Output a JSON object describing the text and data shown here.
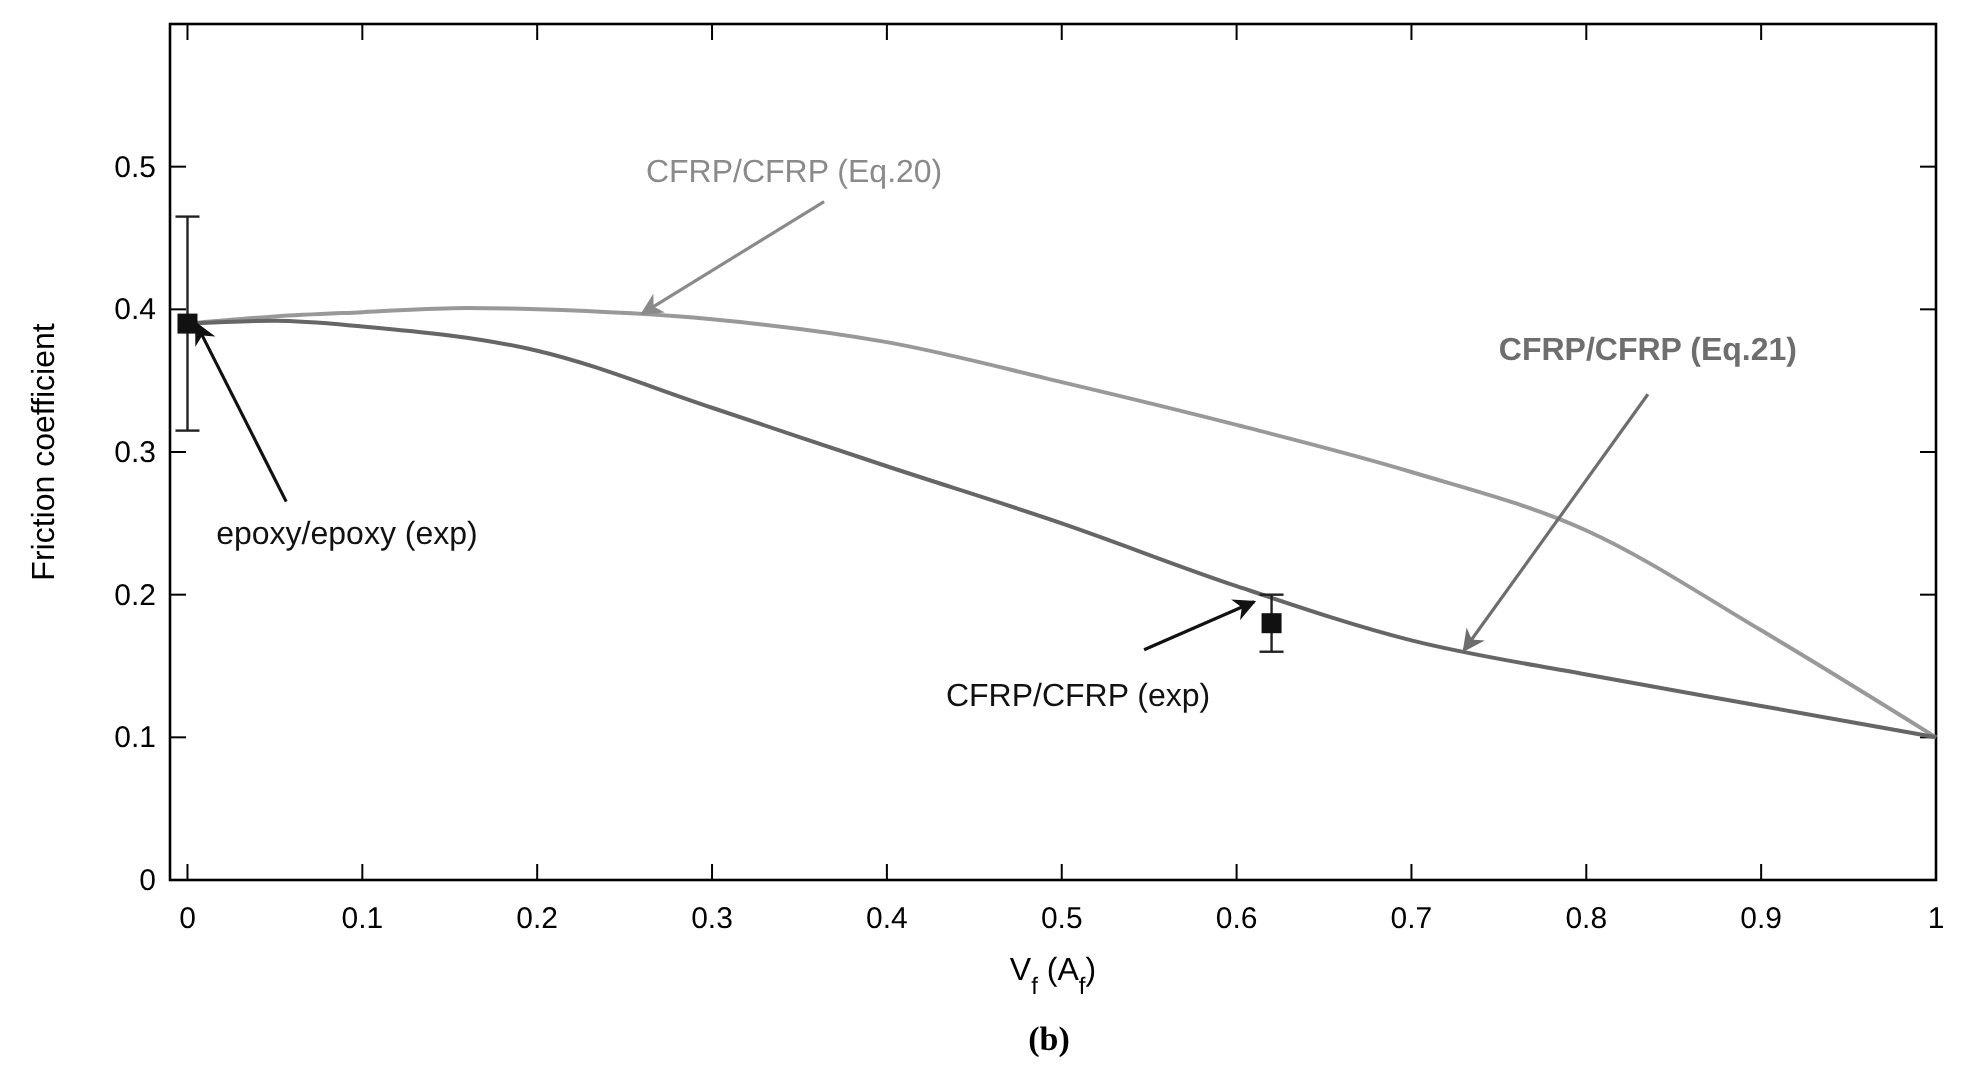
{
  "chart_data": {
    "type": "line",
    "xlabel": "V$_{f}$ (A$_{f}$)",
    "ylabel": "Friction coefficient",
    "xlim": [
      -0.01,
      1
    ],
    "ylim": [
      0,
      0.6
    ],
    "xticks": [
      0,
      0.1,
      0.2,
      0.3,
      0.4,
      0.5,
      0.6,
      0.7,
      0.8,
      0.9,
      1
    ],
    "yticks": [
      0,
      0.1,
      0.2,
      0.3,
      0.4,
      0.5
    ],
    "grid": false,
    "series": [
      {
        "color": "#999999",
        "x": [
          0,
          0.05,
          0.1,
          0.16,
          0.2,
          0.3,
          0.4,
          0.5,
          0.6,
          0.7,
          0.8,
          0.9,
          1
        ],
        "values": [
          0.39,
          0.395,
          0.398,
          0.401,
          0.4,
          0.393,
          0.377,
          0.349,
          0.319,
          0.286,
          0.245,
          0.175,
          0.1
        ],
        "line_style": "solid"
      },
      {
        "color": "#666666",
        "x": [
          0,
          0.05,
          0.1,
          0.2,
          0.3,
          0.4,
          0.5,
          0.6,
          0.7,
          0.8,
          0.9,
          1
        ],
        "values": [
          0.39,
          0.392,
          0.388,
          0.371,
          0.331,
          0.29,
          0.25,
          0.206,
          0.168,
          0.144,
          0.122,
          0.1
        ],
        "line_style": "solid"
      },
      {
        "type": "scatter",
        "color": "#111111",
        "x": [
          0,
          0.62
        ],
        "values": [
          0.39,
          0.18
        ],
        "errors": [
          [
            0.315,
            0.465
          ],
          [
            0.16,
            0.2
          ]
        ],
        "marker": "square"
      }
    ],
    "annotations": [
      {
        "text": "CFRP/CFRP (Eq.20)",
        "x": 0.26,
        "y": 0.397
      },
      {
        "text": "CFRP/CFRP (Eq.21)",
        "x": 0.73,
        "y": 0.161
      },
      {
        "text": "epoxy/epoxy (exp)",
        "x": 0.005,
        "y": 0.39
      },
      {
        "text": "CFRP/CFRP (exp)",
        "x": 0.61,
        "y": 0.195
      },
      "(b)"
    ]
  }
}
